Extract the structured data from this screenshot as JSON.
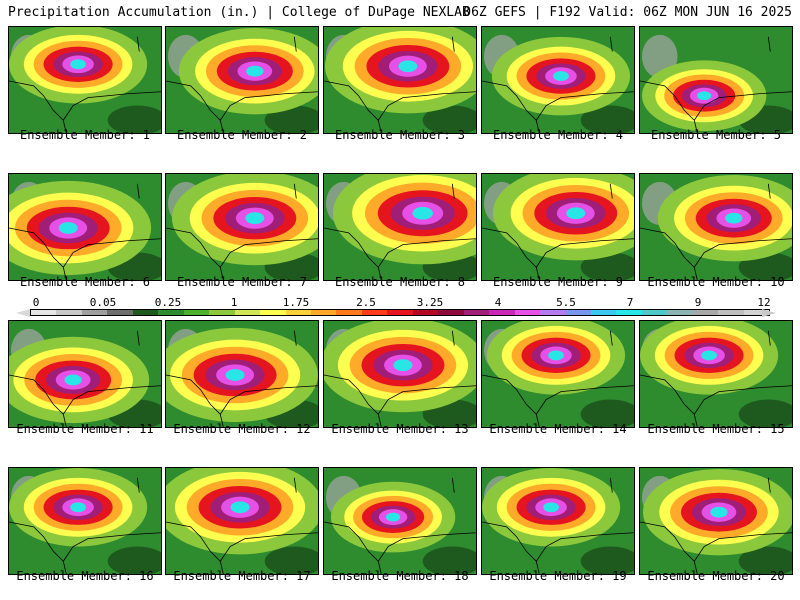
{
  "header": {
    "title_left": "Precipitation Accumulation (in.) | College of DuPage NEXLAB",
    "title_right": "06Z GEFS | F192 Valid: 06Z MON JUN 16 2025"
  },
  "colorbar": {
    "labels": [
      "0",
      "0.05",
      "0.25",
      "1",
      "1.75",
      "2.5",
      "3.25",
      "4",
      "5.5",
      "7",
      "9",
      "12"
    ],
    "colors": [
      "#e6e6e6",
      "#c8c8c8",
      "#a0a0a0",
      "#6e6e6e",
      "#1e5a1e",
      "#2e8b2e",
      "#4caf2e",
      "#8cc83c",
      "#d2e65a",
      "#ffff50",
      "#ffd23c",
      "#ffaa28",
      "#ff7a1e",
      "#ff3c1e",
      "#e6141e",
      "#b40a28",
      "#8c0a3c",
      "#a01e78",
      "#c828b4",
      "#e650e6",
      "#b47af0",
      "#7896f0",
      "#3cc8f0",
      "#28e6e6",
      "#50c8c8",
      "#8cb4b4",
      "#a8a8a8",
      "#bebebe",
      "#d2d2d2"
    ]
  },
  "members": [
    {
      "label": "Ensemble Member: 1"
    },
    {
      "label": "Ensemble Member: 2"
    },
    {
      "label": "Ensemble Member: 3"
    },
    {
      "label": "Ensemble Member: 4"
    },
    {
      "label": "Ensemble Member: 5"
    },
    {
      "label": "Ensemble Member: 6"
    },
    {
      "label": "Ensemble Member: 7"
    },
    {
      "label": "Ensemble Member: 8"
    },
    {
      "label": "Ensemble Member: 9"
    },
    {
      "label": "Ensemble Member: 10"
    },
    {
      "label": "Ensemble Member: 11"
    },
    {
      "label": "Ensemble Member: 12"
    },
    {
      "label": "Ensemble Member: 13"
    },
    {
      "label": "Ensemble Member: 14"
    },
    {
      "label": "Ensemble Member: 15"
    },
    {
      "label": "Ensemble Member: 16"
    },
    {
      "label": "Ensemble Member: 17"
    },
    {
      "label": "Ensemble Member: 18"
    },
    {
      "label": "Ensemble Member: 19"
    },
    {
      "label": "Ensemble Member: 20"
    }
  ]
}
